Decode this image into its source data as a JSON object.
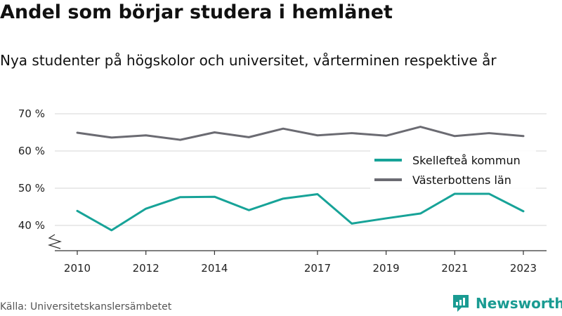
{
  "title": "Andel som börjar studera i hemlänet",
  "subtitle": "Nya studenter på högskolor och universitet, vårterminen respektive år",
  "source": "Källa: Universitetskanslersämbetet",
  "brand": "Newsworthy",
  "colors": {
    "skelleftea": "#17a398",
    "vasterbotten": "#6b6b72",
    "grid": "#d4d4d4",
    "brand": "#1a9b92"
  },
  "chart_data": {
    "type": "line",
    "title": "Andel som börjar studera i hemlänet",
    "subtitle": "Nya studenter på högskolor och universitet, vårterminen respektive år",
    "x": [
      2010,
      2011,
      2012,
      2013,
      2014,
      2015,
      2016,
      2017,
      2018,
      2019,
      2020,
      2021,
      2022,
      2023
    ],
    "x_ticks": [
      "2010",
      "2012",
      "2014",
      "2017",
      "2019",
      "2021",
      "2023"
    ],
    "y_ticks": [
      "40 %",
      "50 %",
      "60 %",
      "70 %"
    ],
    "ylim": [
      35,
      70
    ],
    "grid": true,
    "legend_position": "right",
    "series": [
      {
        "name": "Skellefteå kommun",
        "values": [
          43.9,
          38.7,
          44.5,
          47.6,
          47.7,
          44.1,
          47.2,
          48.4,
          40.5,
          41.9,
          43.2,
          48.5,
          48.5,
          43.8
        ]
      },
      {
        "name": "Västerbottens län",
        "values": [
          64.9,
          63.6,
          64.2,
          63.0,
          65.0,
          63.7,
          66.0,
          64.2,
          64.8,
          64.1,
          66.5,
          64.0,
          64.8,
          64.0
        ]
      }
    ]
  }
}
